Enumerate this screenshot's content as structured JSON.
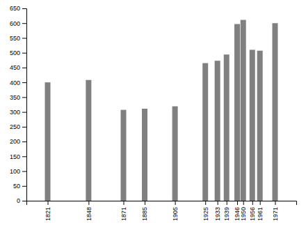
{
  "chart_data": {
    "type": "bar",
    "x": [
      1821,
      1848,
      1871,
      1885,
      1905,
      1925,
      1933,
      1939,
      1946,
      1950,
      1956,
      1961,
      1971
    ],
    "values": [
      400,
      408,
      307,
      311,
      319,
      465,
      473,
      494,
      597,
      611,
      510,
      507,
      600
    ],
    "color": "#808080",
    "xlim": [
      1807,
      1985
    ],
    "xticks": [
      1821,
      1848,
      1871,
      1885,
      1905,
      1925,
      1933,
      1939,
      1946,
      1950,
      1956,
      1961,
      1971
    ],
    "ylim": [
      0,
      650
    ],
    "yticks": [
      0,
      50,
      100,
      150,
      200,
      250,
      300,
      350,
      400,
      450,
      500,
      550,
      600,
      650
    ],
    "grid": false
  }
}
